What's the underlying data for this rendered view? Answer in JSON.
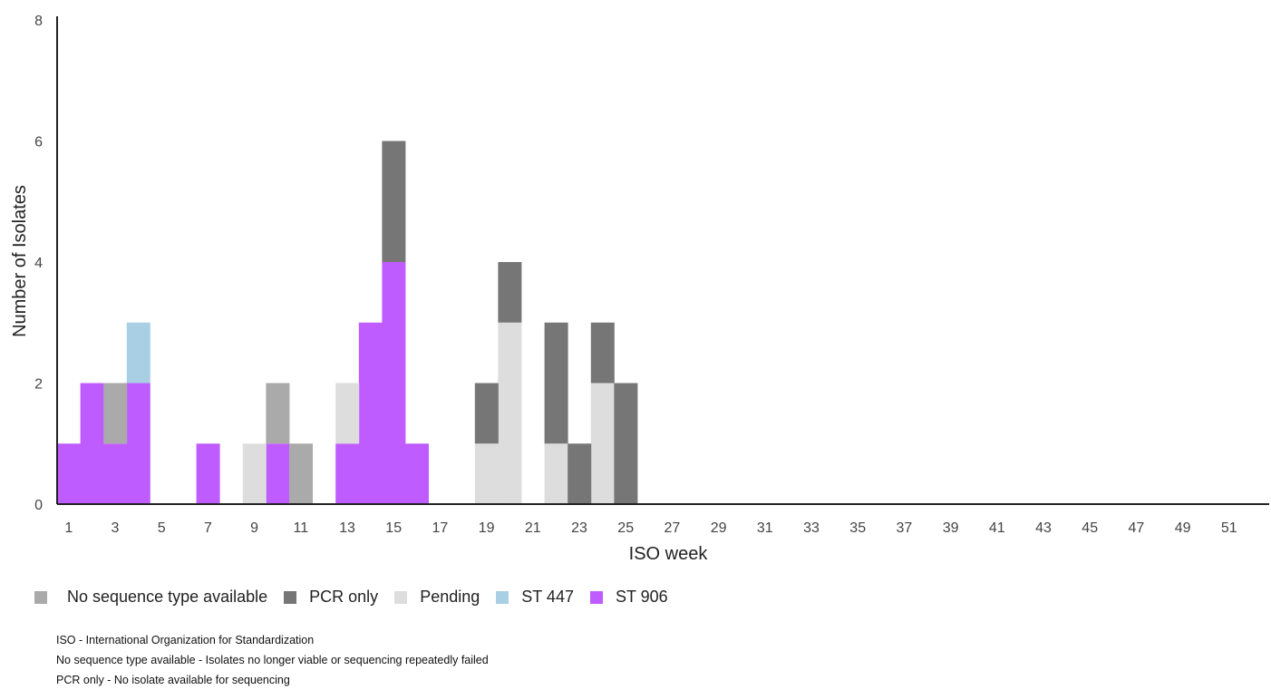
{
  "chart_data": {
    "type": "bar",
    "stacked": true,
    "xlabel": "ISO week",
    "ylabel": "Number of Isolates",
    "ylim": [
      0,
      8
    ],
    "yticks": [
      0,
      2,
      4,
      6,
      8
    ],
    "xlim": [
      1,
      52
    ],
    "xticks": [
      1,
      3,
      5,
      7,
      9,
      11,
      13,
      15,
      17,
      19,
      21,
      23,
      25,
      27,
      29,
      31,
      33,
      35,
      37,
      39,
      41,
      43,
      45,
      47,
      49,
      51
    ],
    "grid": false,
    "legend_position": "bottom-left",
    "series": [
      {
        "name": "ST 906",
        "color": "#bf5cff",
        "values": {
          "1": 1,
          "2": 2,
          "3": 1,
          "4": 2,
          "7": 1,
          "10": 1,
          "13": 1,
          "14": 3,
          "15": 4,
          "16": 1
        }
      },
      {
        "name": "Pending",
        "color": "#dddddd",
        "values": {
          "9": 1,
          "13": 1,
          "19": 1,
          "20": 3,
          "22": 1,
          "24": 2
        }
      },
      {
        "name": "No sequence type available",
        "color": "#aaaaaa",
        "values": {
          "3": 1,
          "10": 1,
          "11": 1
        }
      },
      {
        "name": "PCR only",
        "color": "#767676",
        "values": {
          "15": 2,
          "19": 1,
          "20": 1,
          "22": 2,
          "23": 1,
          "24": 1,
          "25": 2
        }
      },
      {
        "name": "ST 447",
        "color": "#a9cfe5",
        "values": {
          "4": 1
        }
      }
    ]
  },
  "legend": {
    "items": [
      {
        "label": "No sequence type available",
        "color": "#aaaaaa"
      },
      {
        "label": "PCR only",
        "color": "#767676"
      },
      {
        "label": "Pending",
        "color": "#dddddd"
      },
      {
        "label": "ST 447",
        "color": "#a9cfe5"
      },
      {
        "label": "ST 906",
        "color": "#bf5cff"
      }
    ]
  },
  "footnotes": [
    "ISO - International Organization for Standardization",
    "No sequence type available - Isolates no longer viable or sequencing repeatedly failed",
    "PCR only - No isolate available for sequencing"
  ]
}
